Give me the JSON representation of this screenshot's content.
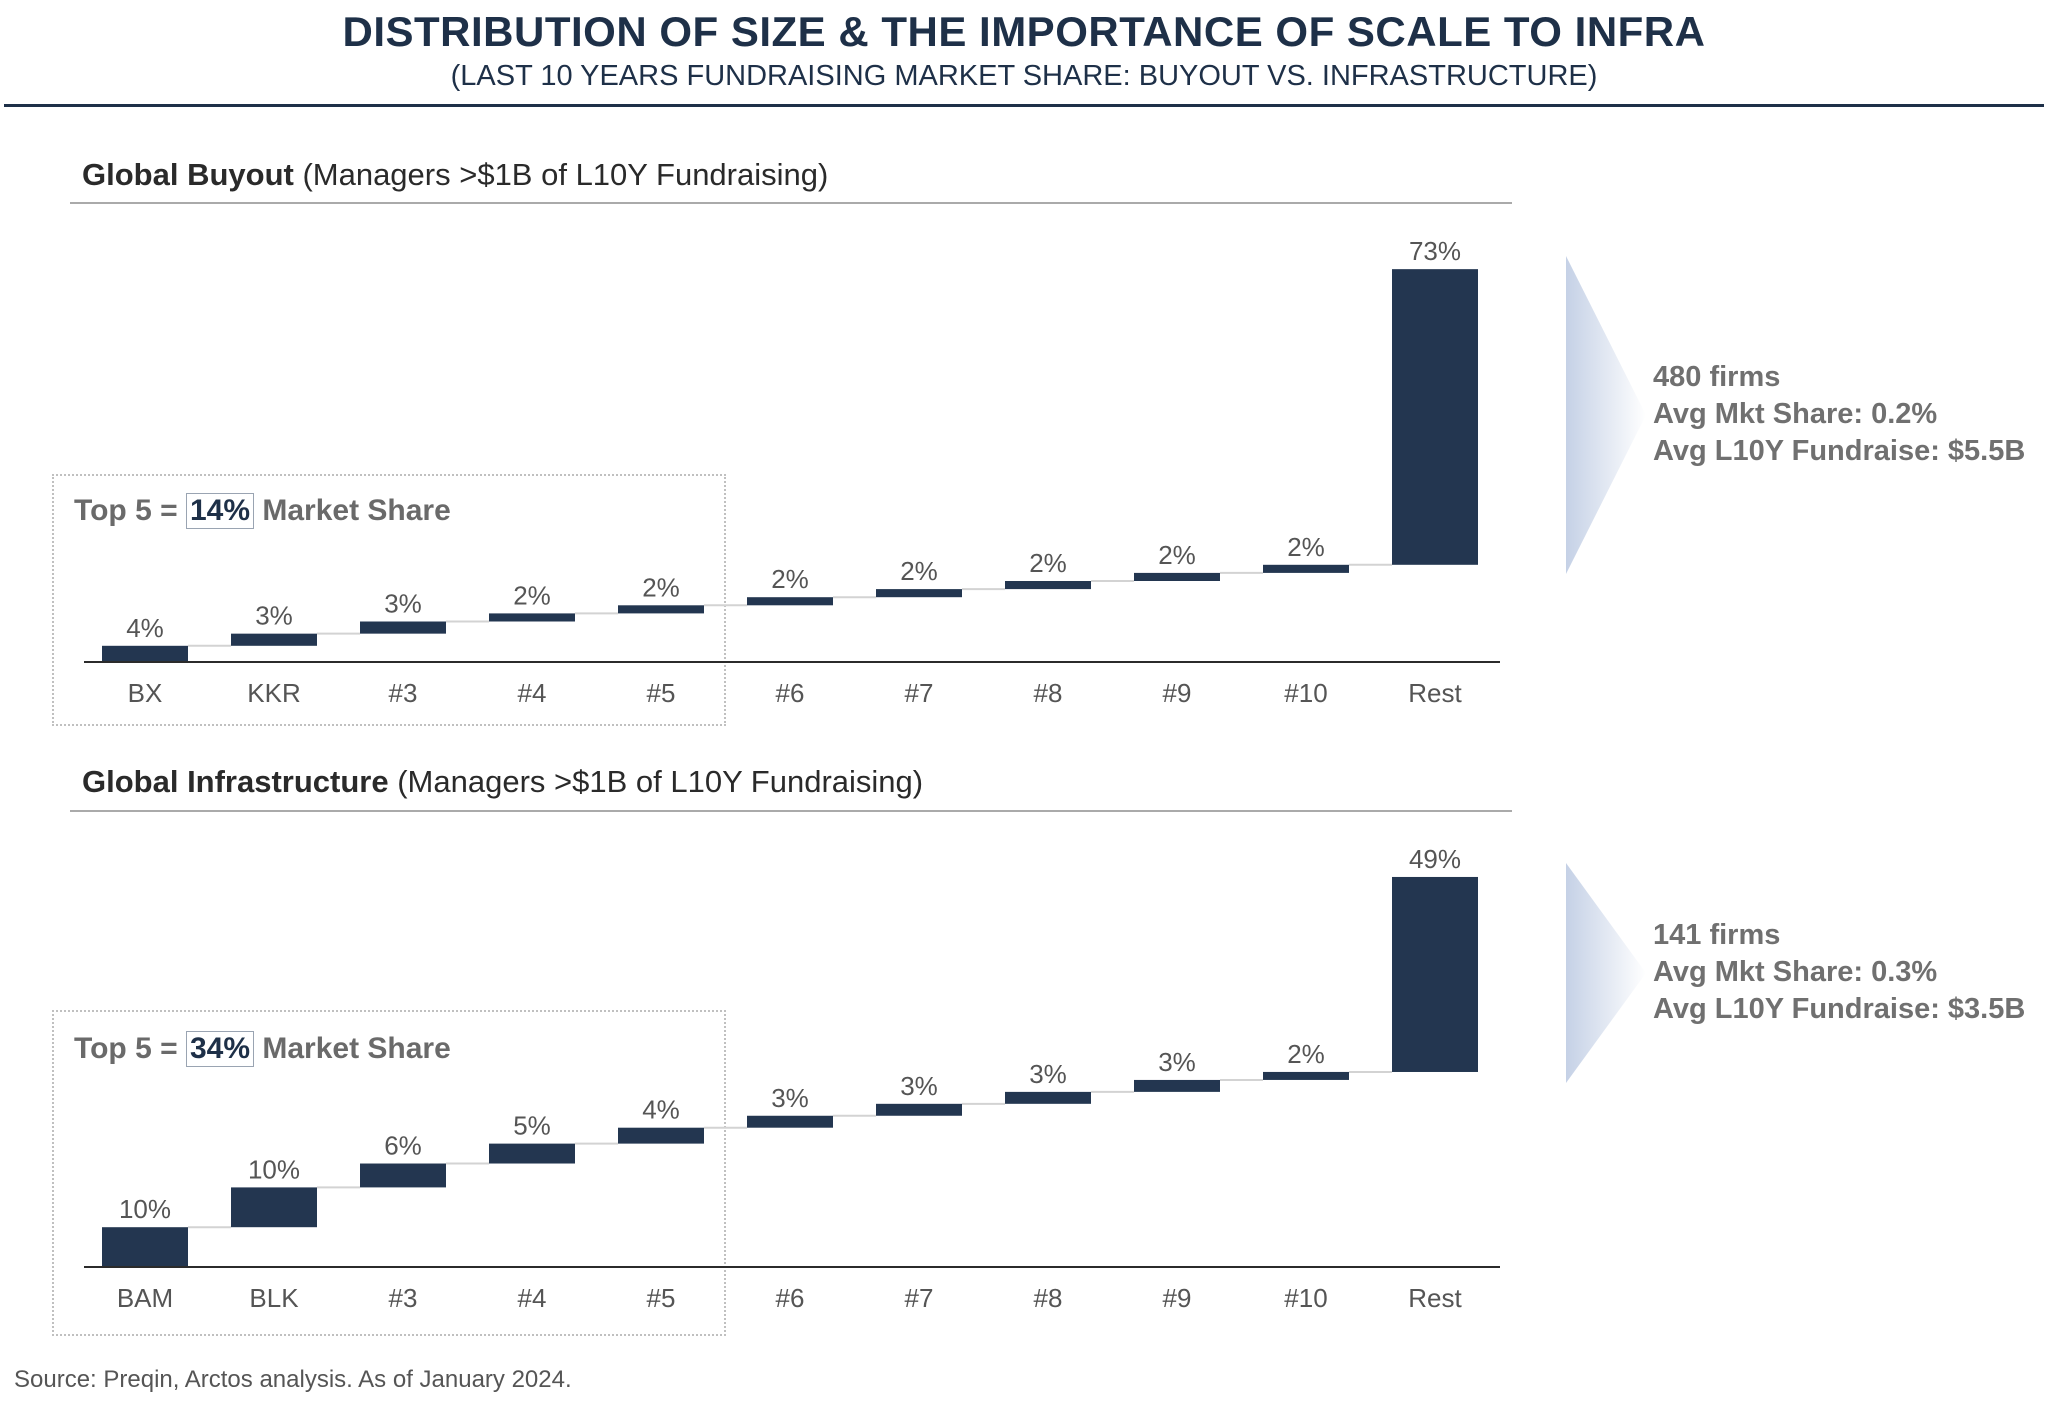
{
  "header": {
    "title": "DISTRIBUTION OF SIZE & THE IMPORTANCE OF SCALE TO INFRA",
    "subtitle": "(LAST 10 YEARS FUNDRAISING MARKET SHARE: BUYOUT VS. INFRASTRUCTURE)"
  },
  "colors": {
    "bar": "#233650",
    "connector": "#d3d3d3",
    "axis": "#2b2b2b",
    "arrow_gradient": [
      "#c5d1e6",
      "#ffffff"
    ]
  },
  "chart_data": [
    {
      "type": "bar",
      "subtype": "waterfall",
      "title_bold": "Global Buyout",
      "title_rest": " (Managers >$1B of L10Y Fundraising)",
      "categories": [
        "BX",
        "KKR",
        "#3",
        "#4",
        "#5",
        "#6",
        "#7",
        "#8",
        "#9",
        "#10",
        "Rest"
      ],
      "values": [
        4,
        3,
        3,
        2,
        2,
        2,
        2,
        2,
        2,
        2,
        73
      ],
      "data_labels": [
        "4%",
        "3%",
        "3%",
        "2%",
        "2%",
        "2%",
        "2%",
        "2%",
        "2%",
        "2%",
        "73%"
      ],
      "top5": {
        "prefix": "Top 5 = ",
        "value": "14%",
        "suffix": " Market Share"
      },
      "summary": [
        "480 firms",
        "Avg Mkt Share: 0.2%",
        "Avg L10Y Fundraise: $5.5B"
      ]
    },
    {
      "type": "bar",
      "subtype": "waterfall",
      "title_bold": "Global Infrastructure",
      "title_rest": " (Managers >$1B of L10Y Fundraising)",
      "categories": [
        "BAM",
        "BLK",
        "#3",
        "#4",
        "#5",
        "#6",
        "#7",
        "#8",
        "#9",
        "#10",
        "Rest"
      ],
      "values": [
        10,
        10,
        6,
        5,
        4,
        3,
        3,
        3,
        3,
        2,
        49
      ],
      "data_labels": [
        "10%",
        "10%",
        "6%",
        "5%",
        "4%",
        "3%",
        "3%",
        "3%",
        "3%",
        "2%",
        "49%"
      ],
      "top5": {
        "prefix": "Top 5 = ",
        "value": "34%",
        "suffix": " Market Share"
      },
      "summary": [
        "141 firms",
        "Avg Mkt Share: 0.3%",
        "Avg L10Y Fundraise: $3.5B"
      ]
    }
  ],
  "footer": {
    "source": "Source: Preqin, Arctos analysis. As of January 2024."
  }
}
